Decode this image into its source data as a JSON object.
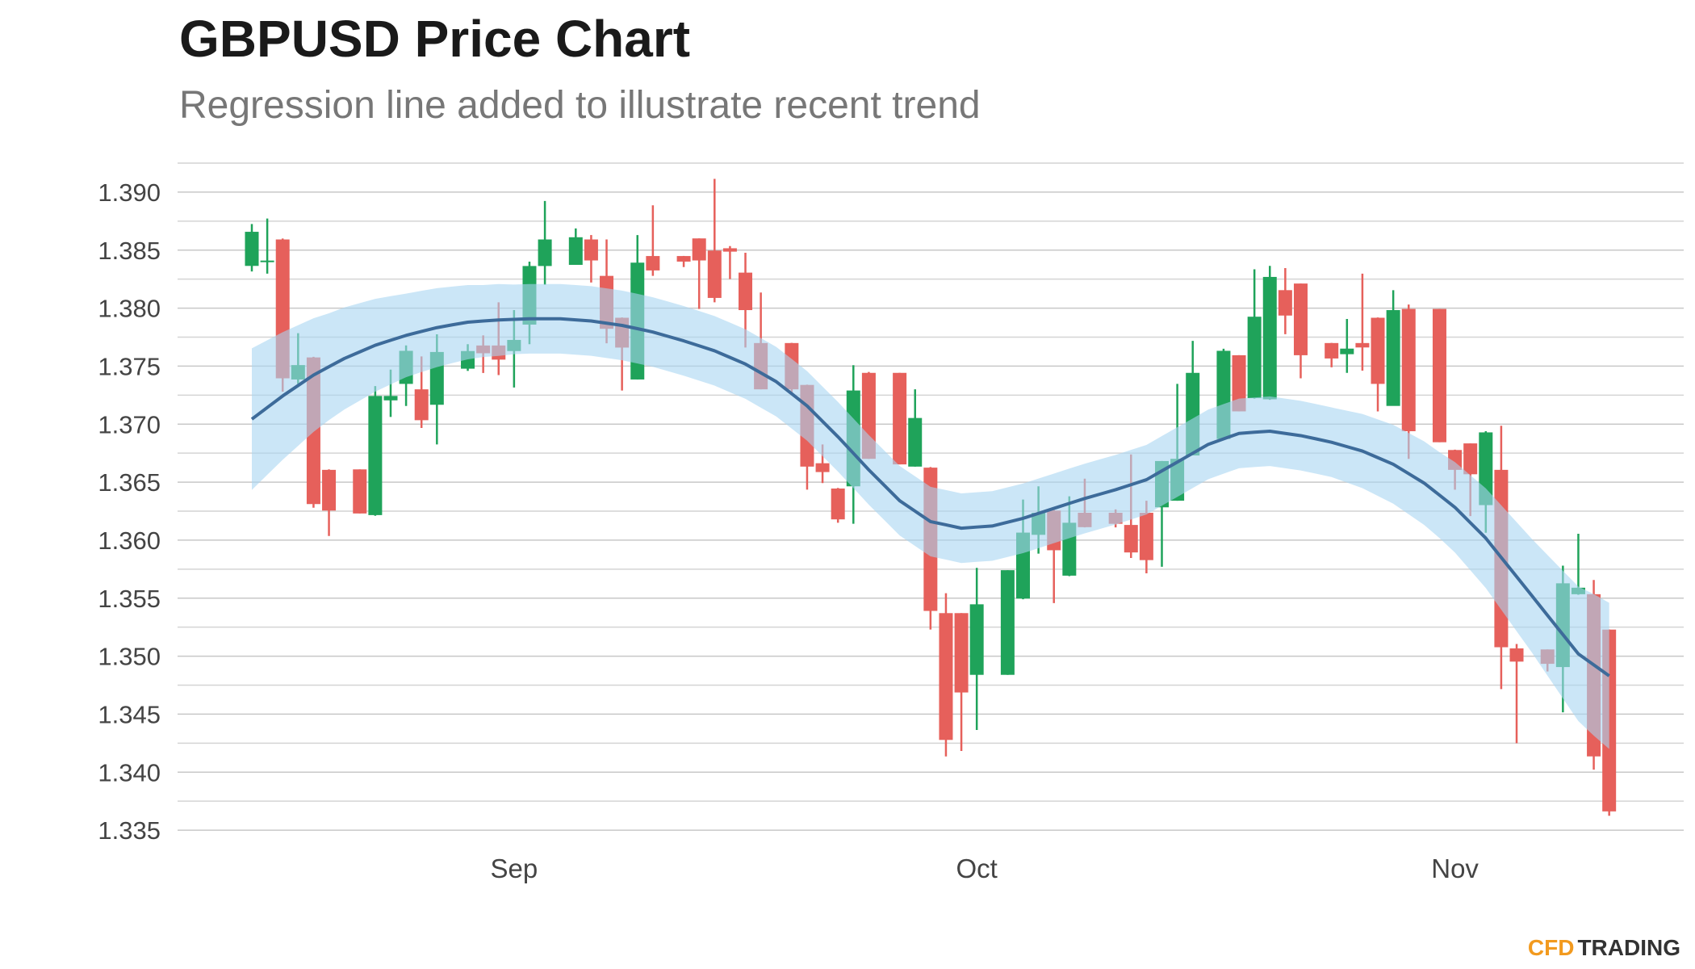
{
  "chart_data": {
    "type": "candlestick",
    "title": "GBPUSD Price Chart",
    "subtitle": "Regression line added to illustrate recent trend",
    "categories": [
      null,
      null,
      null,
      null,
      null,
      null,
      null,
      null,
      null,
      null,
      null,
      null,
      null,
      null,
      null,
      null,
      null,
      "Sep",
      null,
      null,
      null,
      null,
      null,
      null,
      null,
      null,
      null,
      null,
      null,
      null,
      null,
      null,
      null,
      null,
      null,
      null,
      null,
      null,
      null,
      null,
      null,
      null,
      null,
      null,
      null,
      null,
      null,
      "Oct",
      null,
      null,
      null,
      null,
      null,
      null,
      null,
      null,
      null,
      null,
      null,
      null,
      null,
      null,
      null,
      null,
      null,
      null,
      null,
      null,
      null,
      null,
      null,
      null,
      null,
      null,
      null,
      null,
      null,
      null,
      "Nov",
      null,
      null,
      null,
      null,
      null,
      null,
      null,
      null,
      null,
      null
    ],
    "open": [
      1.38364,
      1.384,
      1.38592,
      1.37385,
      1.37575,
      1.36606,
      null,
      1.3661,
      1.36216,
      1.37205,
      1.37347,
      1.373,
      1.37167,
      null,
      1.37478,
      1.37678,
      1.37678,
      1.3763,
      1.37858,
      1.38363,
      null,
      1.38373,
      1.38592,
      1.38278,
      1.37917,
      1.37385,
      1.38449,
      null,
      1.38449,
      1.38601,
      1.38496,
      1.38516,
      1.38306,
      1.37699,
      null,
      1.37699,
      1.37338,
      1.36663,
      1.36445,
      1.36464,
      1.37442,
      null,
      1.37442,
      1.36634,
      1.36625,
      1.35371,
      1.35371,
      1.34839,
      null,
      1.34839,
      1.35496,
      1.36046,
      1.36255,
      1.35694,
      1.36236,
      null,
      1.36236,
      1.36131,
      1.36236,
      1.36283,
      1.3634,
      1.3673,
      null,
      1.36872,
      1.37594,
      1.37224,
      1.37214,
      1.38155,
      1.38212,
      null,
      1.37699,
      1.37603,
      1.37699,
      1.37917,
      1.37157,
      1.37993,
      null,
      1.37993,
      1.36777,
      1.36834,
      1.36302,
      1.36606,
      1.35067,
      null,
      1.35058,
      1.34906,
      1.35534,
      1.35534,
      1.35229
    ],
    "high": [
      1.38725,
      1.38772,
      1.386,
      1.37784,
      1.3758,
      1.3661,
      null,
      1.3661,
      1.37328,
      1.3747,
      1.37679,
      1.37584,
      1.37774,
      null,
      1.37689,
      1.37765,
      1.3805,
      1.37983,
      1.38401,
      1.38924,
      null,
      1.38687,
      1.3863,
      1.38592,
      1.3792,
      1.3863,
      1.38886,
      null,
      1.3845,
      1.38601,
      1.39114,
      1.38535,
      1.38477,
      1.38135,
      null,
      1.377,
      1.3734,
      1.36825,
      1.3645,
      1.37508,
      1.3745,
      null,
      1.37442,
      1.373,
      1.3663,
      1.35543,
      1.35371,
      1.35761,
      null,
      1.35741,
      1.3635,
      1.36464,
      1.3626,
      1.36378,
      1.3653,
      null,
      1.36265,
      1.36739,
      1.3634,
      1.36682,
      1.37347,
      1.37718,
      null,
      1.3765,
      1.37594,
      1.38335,
      1.38364,
      1.38345,
      1.38212,
      null,
      1.377,
      1.37907,
      1.38297,
      1.3792,
      1.38155,
      1.38031,
      null,
      1.37993,
      1.3678,
      1.36834,
      1.36939,
      1.36986,
      1.35105,
      null,
      1.35058,
      1.3578,
      1.36055,
      1.35657,
      1.3523
    ],
    "low": [
      1.38316,
      1.38297,
      1.3728,
      1.37347,
      1.3628,
      1.36036,
      null,
      1.3623,
      1.3621,
      1.37062,
      1.37157,
      1.36967,
      1.36825,
      null,
      1.37459,
      1.37441,
      1.37423,
      1.37316,
      1.37689,
      1.38202,
      null,
      1.38373,
      1.38221,
      1.37697,
      1.3729,
      1.37385,
      1.38278,
      null,
      1.38354,
      1.37993,
      1.3805,
      1.3825,
      1.3766,
      1.373,
      null,
      1.37252,
      1.36435,
      1.36492,
      1.3615,
      1.36141,
      1.36701,
      null,
      1.36653,
      1.36634,
      1.35229,
      1.34136,
      1.34183,
      1.34364,
      null,
      1.34839,
      1.3549,
      1.35884,
      1.35457,
      1.3569,
      1.3611,
      null,
      1.3611,
      1.35846,
      1.35714,
      1.35771,
      1.3634,
      1.3673,
      null,
      1.3687,
      1.3711,
      1.3722,
      1.3721,
      1.37775,
      1.37395,
      null,
      1.3749,
      1.37442,
      1.37461,
      1.3711,
      1.3716,
      1.36701,
      null,
      1.36844,
      1.36435,
      1.36207,
      1.36064,
      1.34716,
      1.3425,
      null,
      1.34868,
      1.34516,
      1.3553,
      1.34022,
      1.33624
    ],
    "close": [
      1.38658,
      1.3841,
      1.37395,
      1.37509,
      1.36311,
      1.36255,
      null,
      1.3623,
      1.37243,
      1.37243,
      1.37632,
      1.37034,
      1.37622,
      null,
      1.3763,
      1.37611,
      1.37556,
      1.37726,
      1.38363,
      1.38592,
      null,
      1.38611,
      1.38411,
      1.37822,
      1.3766,
      1.38392,
      1.38325,
      null,
      1.38401,
      1.38411,
      1.38088,
      1.38487,
      1.37983,
      1.373,
      null,
      1.373,
      1.36634,
      1.36587,
      1.36179,
      1.3729,
      1.36701,
      null,
      1.36653,
      1.37053,
      1.3539,
      1.34278,
      1.34687,
      1.35447,
      null,
      1.35741,
      1.36065,
      1.36236,
      1.35913,
      1.3615,
      1.36112,
      null,
      1.36141,
      1.35894,
      1.35828,
      1.36682,
      1.36701,
      1.37442,
      null,
      1.37632,
      1.3711,
      1.37926,
      1.38269,
      1.37936,
      1.37594,
      null,
      1.37566,
      1.37651,
      1.37661,
      1.37347,
      1.37983,
      1.36939,
      null,
      1.36844,
      1.36606,
      1.36568,
      1.36929,
      1.35077,
      1.34953,
      null,
      1.34934,
      1.35628,
      1.3559,
      1.34136,
      1.33662
    ],
    "up_color": "#1fa35a",
    "down_color": "#e6605b",
    "regression": {
      "color": "#3d6b9a",
      "band_color": "#a9d6f1",
      "values": [
        1.37043,
        1.37143,
        1.37243,
        1.37333,
        1.37423,
        1.37495,
        1.37566,
        1.37623,
        1.3768,
        1.37723,
        1.37765,
        1.37799,
        1.37832,
        1.37856,
        1.37879,
        1.37889,
        1.37898,
        1.37903,
        1.37908,
        1.37908,
        1.37908,
        1.37899,
        1.37889,
        1.3787,
        1.37851,
        1.37823,
        1.37794,
        1.37756,
        1.37718,
        1.37675,
        1.37632,
        1.37575,
        1.37518,
        1.37442,
        1.37366,
        1.37262,
        1.37157,
        1.37024,
        1.36891,
        1.36749,
        1.36606,
        1.36473,
        1.3634,
        1.3625,
        1.3616,
        1.36132,
        1.36103,
        1.36113,
        1.36122,
        1.36155,
        1.36188,
        1.36231,
        1.36274,
        1.36317,
        1.36359,
        1.36397,
        1.36435,
        1.36478,
        1.36521,
        1.36597,
        1.36673,
        1.36749,
        1.36825,
        1.36873,
        1.3692,
        1.3693,
        1.36939,
        1.3692,
        1.36901,
        1.36873,
        1.36844,
        1.36806,
        1.36768,
        1.36711,
        1.36654,
        1.36573,
        1.36492,
        1.36388,
        1.36283,
        1.3615,
        1.36017,
        1.35851,
        1.35685,
        1.35519,
        1.35352,
        1.35186,
        1.3502,
        1.34925,
        1.3483
      ],
      "errors": [
        0.0061,
        0.0058,
        0.0055,
        0.0052,
        0.0049,
        0.0046,
        0.0044,
        0.0042,
        0.004,
        0.0038,
        0.0036,
        0.0035,
        0.0034,
        0.0033,
        0.0032,
        0.0031,
        0.0031,
        0.003,
        0.003,
        0.003,
        0.003,
        0.003,
        0.003,
        0.003,
        0.003,
        0.003,
        0.003,
        0.003,
        0.003,
        0.003,
        0.003,
        0.003,
        0.003,
        0.003,
        0.003,
        0.003,
        0.003,
        0.003,
        0.003,
        0.003,
        0.003,
        0.003,
        0.003,
        0.003,
        0.003,
        0.003,
        0.003,
        0.003,
        0.003,
        0.003,
        0.003,
        0.003,
        0.003,
        0.003,
        0.003,
        0.003,
        0.003,
        0.003,
        0.003,
        0.003,
        0.003,
        0.003,
        0.003,
        0.003,
        0.003,
        0.003,
        0.003,
        0.003,
        0.003,
        0.003,
        0.003,
        0.0031,
        0.0032,
        0.0033,
        0.0034,
        0.0035,
        0.0036,
        0.0037,
        0.0039,
        0.0041,
        0.0043,
        0.0045,
        0.0047,
        0.0049,
        0.0052,
        0.0055,
        0.0058,
        0.0061,
        0.0063
      ]
    },
    "ylim": [
      1.3325,
      1.3925
    ],
    "yticks": [
      {
        "value": 1.39,
        "label": "1.390"
      },
      {
        "value": 1.385,
        "label": "1.385"
      },
      {
        "value": 1.38,
        "label": "1.380"
      },
      {
        "value": 1.375,
        "label": "1.375"
      },
      {
        "value": 1.37,
        "label": "1.370"
      },
      {
        "value": 1.365,
        "label": "1.365"
      },
      {
        "value": 1.36,
        "label": "1.360"
      },
      {
        "value": 1.355,
        "label": "1.355"
      },
      {
        "value": 1.35,
        "label": "1.350"
      },
      {
        "value": 1.345,
        "label": "1.345"
      },
      {
        "value": 1.34,
        "label": "1.340"
      },
      {
        "value": 1.335,
        "label": "1.335"
      }
    ],
    "y_minor_ticks": [
      1.3925,
      1.3875,
      1.3825,
      1.3775,
      1.3725,
      1.3675,
      1.3625,
      1.3575,
      1.3525,
      1.3475,
      1.3425,
      1.3375
    ],
    "grid": true,
    "brand": {
      "first": "CFD",
      "second": "TRADING",
      "first_color": "#f29a1f",
      "second_color": "#333333"
    }
  }
}
